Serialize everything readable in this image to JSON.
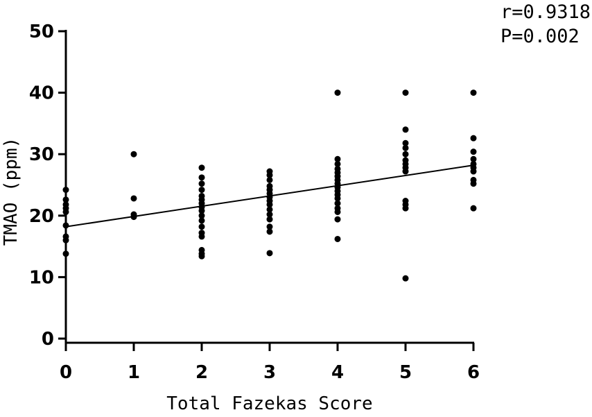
{
  "chart_data": {
    "type": "scatter",
    "title": "",
    "xlabel": "Total Fazekas Score",
    "ylabel": "TMAO (ppm)",
    "xlim": [
      0,
      6
    ],
    "ylim": [
      0,
      50
    ],
    "x_ticks": [
      "0",
      "1",
      "2",
      "3",
      "4",
      "5",
      "6"
    ],
    "y_ticks": [
      "0",
      "10",
      "20",
      "30",
      "40",
      "50"
    ],
    "grid": false,
    "legend": "none",
    "point_color": "#000000",
    "annotations": {
      "r": "r=0.9318",
      "p": "P=0.002"
    },
    "regression": {
      "x": [
        0,
        6
      ],
      "y": [
        18.2,
        28.2
      ]
    },
    "series": [
      {
        "points": [
          {
            "x": 0,
            "y": 24.2
          },
          {
            "x": 0,
            "y": 22.6
          },
          {
            "x": 0,
            "y": 21.8
          },
          {
            "x": 0,
            "y": 21.2
          },
          {
            "x": 0,
            "y": 20.6
          },
          {
            "x": 0,
            "y": 18.4
          },
          {
            "x": 0,
            "y": 16.6
          },
          {
            "x": 0,
            "y": 16.0
          },
          {
            "x": 0,
            "y": 13.8
          },
          {
            "x": 1,
            "y": 30.0
          },
          {
            "x": 1,
            "y": 22.8
          },
          {
            "x": 1,
            "y": 20.2
          },
          {
            "x": 1,
            "y": 19.8
          },
          {
            "x": 2,
            "y": 27.8
          },
          {
            "x": 2,
            "y": 26.2
          },
          {
            "x": 2,
            "y": 25.2
          },
          {
            "x": 2,
            "y": 24.2
          },
          {
            "x": 2,
            "y": 23.2
          },
          {
            "x": 2,
            "y": 22.6
          },
          {
            "x": 2,
            "y": 22.0
          },
          {
            "x": 2,
            "y": 21.4
          },
          {
            "x": 2,
            "y": 20.8
          },
          {
            "x": 2,
            "y": 20.0
          },
          {
            "x": 2,
            "y": 19.2
          },
          {
            "x": 2,
            "y": 18.2
          },
          {
            "x": 2,
            "y": 17.2
          },
          {
            "x": 2,
            "y": 16.6
          },
          {
            "x": 2,
            "y": 14.4
          },
          {
            "x": 2,
            "y": 13.8
          },
          {
            "x": 2,
            "y": 13.4
          },
          {
            "x": 3,
            "y": 27.2
          },
          {
            "x": 3,
            "y": 26.6
          },
          {
            "x": 3,
            "y": 25.8
          },
          {
            "x": 3,
            "y": 24.8
          },
          {
            "x": 3,
            "y": 24.2
          },
          {
            "x": 3,
            "y": 23.6
          },
          {
            "x": 3,
            "y": 23.0
          },
          {
            "x": 3,
            "y": 22.4
          },
          {
            "x": 3,
            "y": 21.8
          },
          {
            "x": 3,
            "y": 21.0
          },
          {
            "x": 3,
            "y": 20.2
          },
          {
            "x": 3,
            "y": 19.4
          },
          {
            "x": 3,
            "y": 18.2
          },
          {
            "x": 3,
            "y": 17.4
          },
          {
            "x": 3,
            "y": 13.9
          },
          {
            "x": 4,
            "y": 40.0
          },
          {
            "x": 4,
            "y": 29.2
          },
          {
            "x": 4,
            "y": 28.4
          },
          {
            "x": 4,
            "y": 27.6
          },
          {
            "x": 4,
            "y": 27.0
          },
          {
            "x": 4,
            "y": 26.4
          },
          {
            "x": 4,
            "y": 25.8
          },
          {
            "x": 4,
            "y": 25.2
          },
          {
            "x": 4,
            "y": 24.6
          },
          {
            "x": 4,
            "y": 24.0
          },
          {
            "x": 4,
            "y": 23.4
          },
          {
            "x": 4,
            "y": 22.8
          },
          {
            "x": 4,
            "y": 22.0
          },
          {
            "x": 4,
            "y": 21.2
          },
          {
            "x": 4,
            "y": 20.6
          },
          {
            "x": 4,
            "y": 19.4
          },
          {
            "x": 4,
            "y": 16.2
          },
          {
            "x": 5,
            "y": 40.0
          },
          {
            "x": 5,
            "y": 34.0
          },
          {
            "x": 5,
            "y": 31.8
          },
          {
            "x": 5,
            "y": 31.0
          },
          {
            "x": 5,
            "y": 30.0
          },
          {
            "x": 5,
            "y": 29.0
          },
          {
            "x": 5,
            "y": 28.4
          },
          {
            "x": 5,
            "y": 27.8
          },
          {
            "x": 5,
            "y": 27.2
          },
          {
            "x": 5,
            "y": 22.4
          },
          {
            "x": 5,
            "y": 21.8
          },
          {
            "x": 5,
            "y": 21.2
          },
          {
            "x": 5,
            "y": 9.8
          },
          {
            "x": 6,
            "y": 40.0
          },
          {
            "x": 6,
            "y": 32.6
          },
          {
            "x": 6,
            "y": 30.4
          },
          {
            "x": 6,
            "y": 29.2
          },
          {
            "x": 6,
            "y": 28.4
          },
          {
            "x": 6,
            "y": 27.8
          },
          {
            "x": 6,
            "y": 27.2
          },
          {
            "x": 6,
            "y": 25.8
          },
          {
            "x": 6,
            "y": 25.2
          },
          {
            "x": 6,
            "y": 21.2
          }
        ]
      }
    ]
  }
}
